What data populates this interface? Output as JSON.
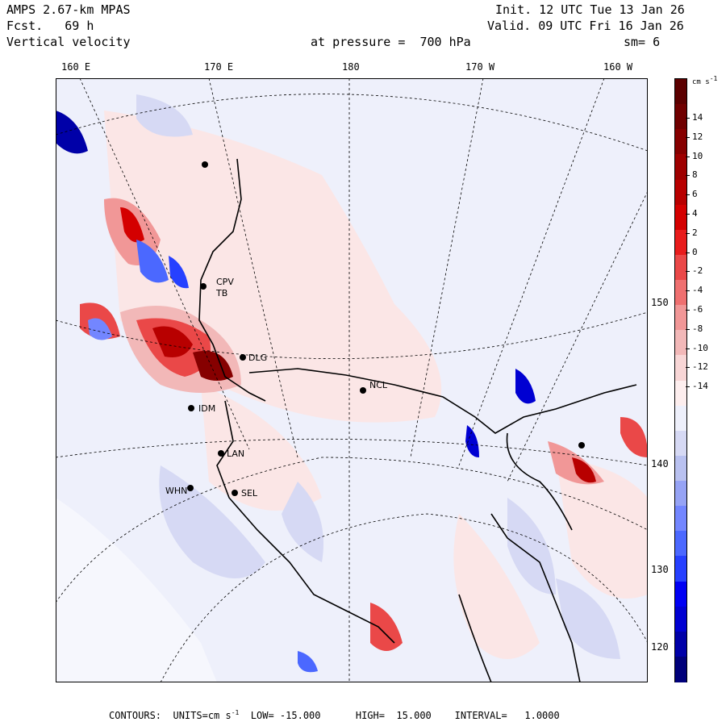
{
  "header": {
    "model": "AMPS 2.67-km MPAS",
    "fcst": "Fcst.   69 h",
    "field": "Vertical velocity",
    "init": "Init. 12 UTC Tue 13 Jan 26",
    "valid": "Valid. 09 UTC Fri 16 Jan 26",
    "pressure": "at pressure =  700 hPa",
    "smooth": "sm= 6"
  },
  "lon_labels": [
    "160 E",
    "170 E",
    "180",
    "170 W",
    "160 W"
  ],
  "lat_labels": [
    "150 W",
    "140 W",
    "130 W",
    "120 W"
  ],
  "colorbar": {
    "unit": "cm s",
    "unit_exp": "-1",
    "ticks": [
      "14",
      "12",
      "10",
      "8",
      "6",
      "4",
      "2",
      "0",
      "-2",
      "-4",
      "-6",
      "-8",
      "-10",
      "-12",
      "-14"
    ],
    "colors": [
      "#00007a",
      "#0000a8",
      "#0000d2",
      "#0000f4",
      "#2640ff",
      "#4b68ff",
      "#7386ff",
      "#96a3f5",
      "#b9c1f0",
      "#d6d9f4",
      "#eef0fb",
      "#fdeeee",
      "#f8d6d6",
      "#f2b8b8",
      "#f19797",
      "#ef7070",
      "#ea4848",
      "#e81c1c",
      "#d40000",
      "#b80000",
      "#9e0000",
      "#860000",
      "#700000",
      "#5c0000"
    ]
  },
  "footer": {
    "text": "CONTOURS:  UNITS=cm s",
    "exp": "-1",
    "rest": "  LOW= -15.000      HIGH=  15.000    INTERVAL=   1.0000"
  },
  "stations": [
    "CPV",
    "TB",
    "DLG",
    "NCL",
    "IDM",
    "LAN",
    "WHN",
    "SEL"
  ]
}
